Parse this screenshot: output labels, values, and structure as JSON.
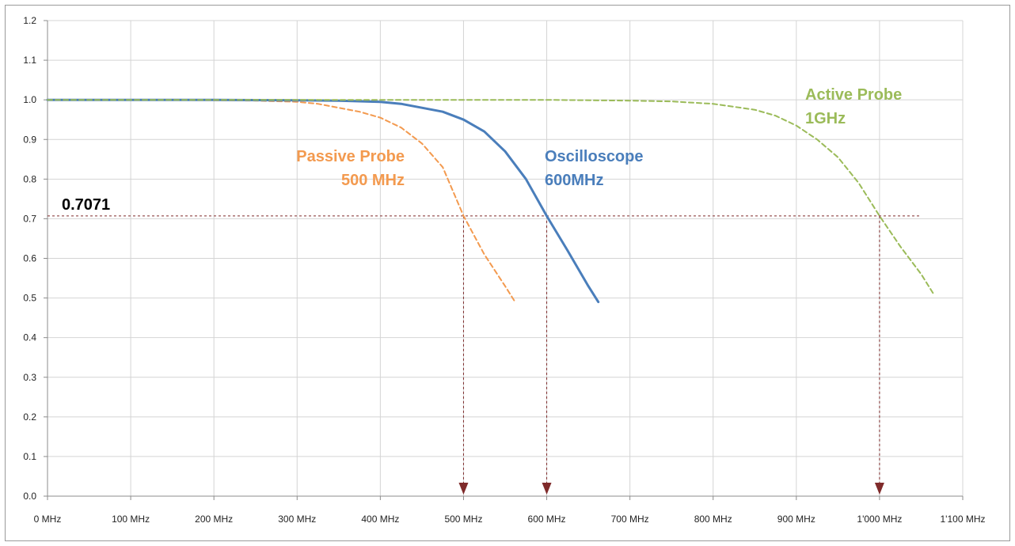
{
  "chart_data": {
    "type": "line",
    "title": "",
    "xlabel": "",
    "ylabel": "",
    "xlim": [
      0,
      1100
    ],
    "ylim": [
      0,
      1.2
    ],
    "grid": true,
    "x_tick_values": [
      0,
      100,
      200,
      300,
      400,
      500,
      600,
      700,
      800,
      900,
      1000,
      1100
    ],
    "x_tick_labels": [
      "0 MHz",
      "100 MHz",
      "200 MHz",
      "300 MHz",
      "400 MHz",
      "500 MHz",
      "600 MHz",
      "700 MHz",
      "800 MHz",
      "900 MHz",
      "1'000 MHz",
      "1'100 MHz"
    ],
    "y_tick_values": [
      0.0,
      0.1,
      0.2,
      0.3,
      0.4,
      0.5,
      0.6,
      0.7,
      0.8,
      0.9,
      1.0,
      1.1,
      1.2
    ],
    "y_tick_labels": [
      "0.0",
      "0.1",
      "0.2",
      "0.3",
      "0.4",
      "0.5",
      "0.6",
      "0.7",
      "0.8",
      "0.9",
      "1.0",
      "1.1",
      "1.2"
    ],
    "series": [
      {
        "label_line1": "Passive Probe",
        "label_line2": "500 MHz",
        "color": "#F39A4F",
        "dashed": true,
        "x": [
          0,
          100,
          200,
          250,
          300,
          325,
          350,
          375,
          400,
          425,
          450,
          475,
          500,
          525,
          550,
          562
        ],
        "y": [
          1.0,
          1.0,
          0.999,
          0.998,
          0.995,
          0.99,
          0.98,
          0.97,
          0.955,
          0.93,
          0.89,
          0.83,
          0.707,
          0.61,
          0.53,
          0.49
        ]
      },
      {
        "label_line1": "Oscilloscope",
        "label_line2": "600MHz",
        "color": "#4A7EBB",
        "dashed": false,
        "x": [
          0,
          100,
          200,
          300,
          350,
          400,
          425,
          450,
          475,
          500,
          525,
          550,
          575,
          600,
          625,
          650,
          662
        ],
        "y": [
          1.0,
          1.0,
          1.0,
          0.999,
          0.998,
          0.995,
          0.99,
          0.98,
          0.97,
          0.95,
          0.92,
          0.87,
          0.8,
          0.707,
          0.62,
          0.53,
          0.49
        ]
      },
      {
        "label_line1": "Active Probe",
        "label_line2": "1GHz",
        "color": "#9BBB59",
        "dashed": true,
        "x": [
          0,
          200,
          400,
          600,
          700,
          750,
          800,
          850,
          875,
          900,
          925,
          950,
          975,
          1000,
          1025,
          1050,
          1065
        ],
        "y": [
          1.0,
          1.0,
          1.0,
          1.0,
          0.998,
          0.996,
          0.99,
          0.975,
          0.96,
          0.935,
          0.9,
          0.855,
          0.79,
          0.707,
          0.63,
          0.56,
          0.51
        ]
      }
    ],
    "reference_line": {
      "label": "0.7071",
      "y": 0.7071,
      "x_end": 1050,
      "color": "#7F2B2B"
    },
    "markers": [
      {
        "x": 500,
        "color": "#7F2B2B"
      },
      {
        "x": 600,
        "color": "#7F2B2B"
      },
      {
        "x": 1000,
        "color": "#7F2B2B"
      }
    ]
  }
}
